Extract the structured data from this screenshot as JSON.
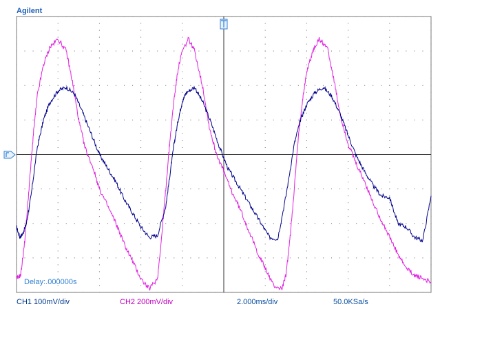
{
  "brand": "Agilent",
  "status": {
    "ch1": "CH1 100mV/div",
    "ch2": "CH2 200mV/div",
    "timebase": "2.000ms/div",
    "sample_rate": "50.0KSa/s"
  },
  "delay": "Delay:.000000s",
  "markers": {
    "trigger_icon": "trigger-marker-icon",
    "ground_icon": "ground-reference-icon"
  },
  "colors": {
    "ch1": "#00008b",
    "ch2": "#e020e0",
    "brand": "#1f5fb8",
    "ch1_text": "#003a8c",
    "ch2_text": "#c000c0",
    "timebase_text": "#0a4fa0",
    "delay_text": "#2f7fd0"
  },
  "chart_data": {
    "type": "line",
    "x_unit": "ms",
    "y_unit": "div",
    "xlim": [
      0,
      20
    ],
    "ylim": [
      -4,
      4
    ],
    "grid": true,
    "series": [
      {
        "name": "CH1",
        "x": [
          0,
          0.16,
          0.3,
          0.48,
          0.7,
          1.0,
          1.3,
          1.6,
          2.0,
          2.4,
          2.8,
          3.2,
          3.6,
          4.0,
          4.4,
          4.8,
          5.2,
          5.6,
          6.0,
          6.4,
          6.8,
          7.2,
          7.4,
          7.6,
          7.8,
          8.0,
          8.2,
          8.6,
          9.0,
          9.4,
          9.8,
          10.2,
          10.6,
          11.0,
          11.4,
          11.8,
          12.2,
          12.6,
          13.0,
          13.4,
          13.7,
          14.0,
          14.4,
          14.8,
          15.2,
          15.6,
          16.0,
          16.4,
          16.8,
          17.2,
          17.6,
          18.0,
          18.4,
          18.8,
          19.2,
          19.6,
          20.0
        ],
        "y": [
          -2.1,
          -2.4,
          -2.3,
          -2.0,
          -1.2,
          0.2,
          1.0,
          1.5,
          1.85,
          1.95,
          1.75,
          1.2,
          0.6,
          0.0,
          -0.4,
          -0.8,
          -1.3,
          -1.7,
          -2.1,
          -2.4,
          -2.35,
          -1.5,
          -0.6,
          0.3,
          1.0,
          1.55,
          1.8,
          1.95,
          1.5,
          0.9,
          0.2,
          -0.4,
          -0.8,
          -1.2,
          -1.6,
          -2.0,
          -2.4,
          -2.45,
          -1.2,
          0.3,
          1.0,
          1.45,
          1.8,
          1.95,
          1.7,
          1.2,
          0.55,
          -0.05,
          -0.5,
          -0.9,
          -1.2,
          -1.25,
          -2.0,
          -2.1,
          -2.4,
          -2.5,
          -1.2
        ],
        "note": ""
      }
    ]
  }
}
